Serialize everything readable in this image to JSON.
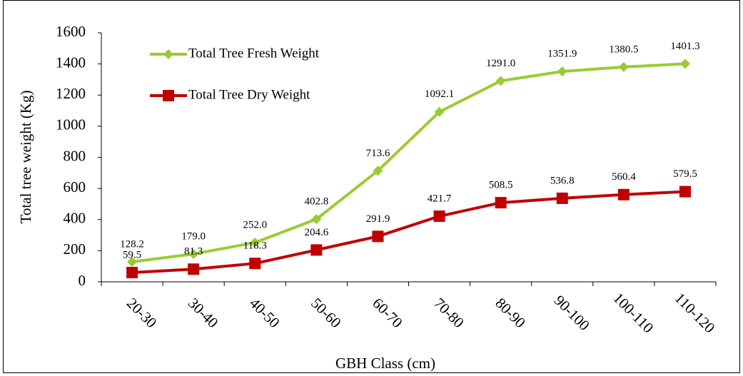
{
  "chart_data": {
    "type": "line",
    "x_label": "GBH Class (cm)",
    "y_label": "Total tree weight (Kg)",
    "categories": [
      "20-30",
      "30-40",
      "40-50",
      "50-60",
      "60-70",
      "70-80",
      "80-90",
      "90-100",
      "100-110",
      "110-120"
    ],
    "series": [
      {
        "name": "Total Tree Fresh Weight",
        "color": "#99cc33",
        "marker": "diamond",
        "values": [
          128.2,
          179.0,
          252.0,
          402.8,
          713.6,
          1092.1,
          1291.0,
          1351.9,
          1380.5,
          1401.3
        ],
        "value_labels": [
          "128.2",
          "179.0",
          "252.0",
          "402.8",
          "713.6",
          "1092.1",
          "1291.0",
          "1351.9",
          "1380.5",
          "1401.3"
        ]
      },
      {
        "name": "Total Tree Dry Weight",
        "color": "#c00000",
        "marker": "square",
        "values": [
          59.5,
          81.3,
          118.3,
          204.6,
          291.9,
          421.7,
          508.5,
          536.8,
          560.4,
          579.5
        ],
        "value_labels": [
          "59.5",
          "81.3",
          "118.3",
          "204.6",
          "291.9",
          "421.7",
          "508.5",
          "536.8",
          "560.4",
          "579.5"
        ]
      }
    ],
    "ylim": [
      0,
      1600
    ],
    "yticks": [
      0,
      200,
      400,
      600,
      800,
      1000,
      1200,
      1400,
      1600
    ],
    "grid": false,
    "legend": "upper left"
  }
}
